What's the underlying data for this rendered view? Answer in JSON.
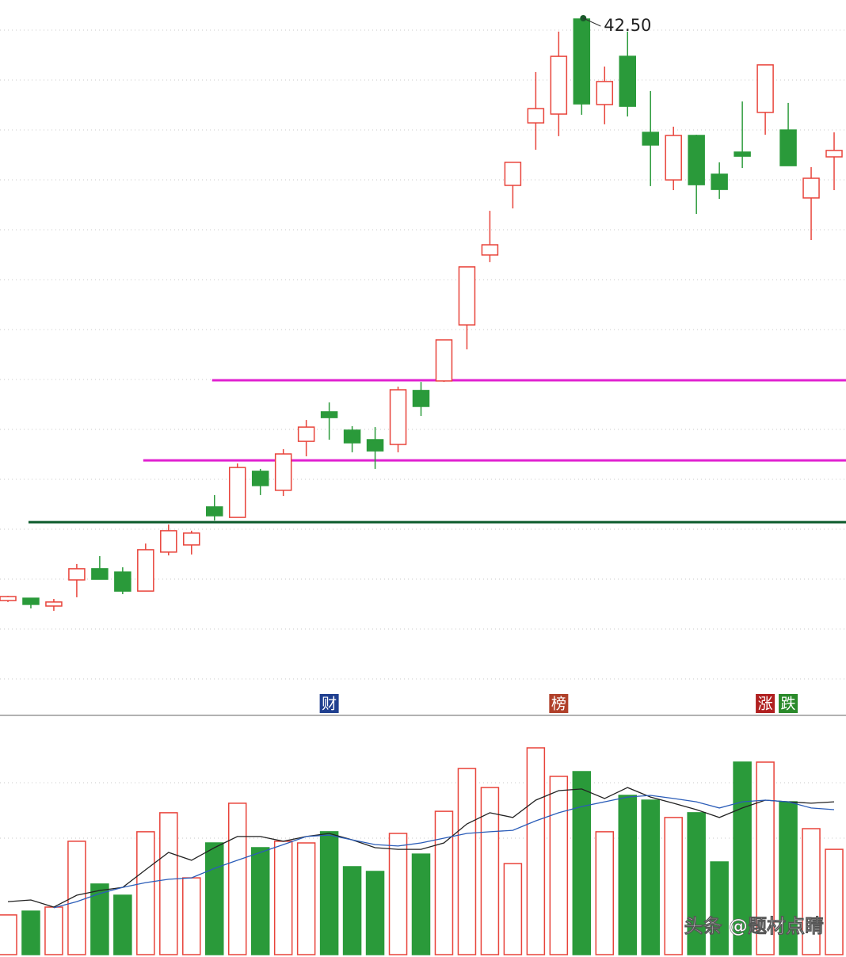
{
  "chart_data": {
    "type": "candlestick",
    "categories": [
      null,
      null,
      null,
      null,
      null,
      null,
      null,
      null,
      null,
      null,
      null,
      null,
      null,
      null,
      null,
      null,
      null,
      null,
      null,
      null,
      null,
      null,
      null,
      null,
      null,
      null,
      null,
      null,
      null,
      null,
      null,
      null,
      null,
      null,
      null,
      null,
      null
    ],
    "open": [
      17.93,
      18.03,
      17.7,
      18.8,
      19.27,
      19.13,
      18.33,
      19.97,
      20.27,
      21.87,
      21.43,
      23.37,
      22.57,
      24.63,
      25.87,
      25.1,
      24.7,
      24.5,
      26.77,
      27.17,
      29.53,
      32.47,
      35.4,
      38.03,
      38.4,
      42.4,
      38.8,
      40.83,
      37.63,
      35.63,
      37.5,
      35.87,
      36.8,
      38.47,
      37.73,
      34.87,
      36.6
    ],
    "high": [
      18.13,
      18.03,
      18.0,
      19.47,
      19.8,
      19.33,
      20.33,
      21.13,
      20.87,
      22.37,
      23.7,
      23.47,
      24.3,
      25.53,
      26.27,
      25.27,
      25.23,
      26.93,
      27.13,
      28.9,
      31.97,
      34.33,
      36.37,
      40.17,
      41.87,
      42.5,
      40.4,
      41.87,
      39.37,
      37.87,
      37.53,
      36.37,
      38.93,
      40.47,
      38.87,
      36.17,
      37.63
    ],
    "low": [
      17.87,
      17.6,
      17.5,
      18.07,
      18.83,
      18.2,
      18.33,
      19.83,
      19.87,
      21.3,
      21.43,
      22.37,
      22.33,
      24.0,
      24.7,
      24.17,
      23.47,
      24.17,
      25.7,
      27.13,
      28.5,
      32.17,
      34.43,
      36.9,
      37.47,
      38.37,
      37.97,
      38.3,
      35.37,
      35.2,
      34.2,
      34.83,
      36.13,
      37.53,
      36.23,
      33.1,
      35.2
    ],
    "close": [
      18.1,
      17.77,
      17.87,
      19.27,
      18.83,
      18.33,
      20.07,
      20.87,
      20.77,
      21.5,
      23.53,
      22.77,
      24.1,
      25.23,
      25.63,
      24.57,
      24.23,
      26.8,
      26.1,
      28.9,
      31.97,
      32.9,
      36.37,
      38.63,
      40.83,
      38.83,
      39.77,
      38.73,
      37.1,
      37.5,
      35.43,
      35.23,
      36.63,
      40.47,
      36.23,
      35.7,
      36.87
    ],
    "up_color": "#e8433a",
    "down_color": "#2a9a3a",
    "ylim": [
      13.2,
      43.2
    ],
    "max_label": {
      "index": 25,
      "text": "42.50"
    },
    "levels": [
      {
        "value": 27.2,
        "color": "#e020d0",
        "start": 9
      },
      {
        "value": 23.83,
        "color": "#e020d0",
        "start": 6
      },
      {
        "value": 21.23,
        "color": "#0a5a2a",
        "start": 1
      }
    ],
    "events": [
      {
        "index": 14,
        "label": "财",
        "color": "#1f3f8f"
      },
      {
        "index": 24,
        "label": "榜",
        "color": "#b0402a"
      },
      {
        "index": 33,
        "label": "涨",
        "color": "#b02020"
      },
      {
        "index": 34,
        "label": "跌",
        "color": "#2a8a2a"
      }
    ],
    "volume": {
      "values": [
        16.7,
        18.3,
        20,
        47.7,
        29.7,
        25,
        51.7,
        59.7,
        32.3,
        47,
        63.7,
        45,
        47.7,
        47,
        51.7,
        37,
        35,
        51,
        42.3,
        60.3,
        78.3,
        70.3,
        38.3,
        87,
        75,
        77,
        51.7,
        67,
        65,
        57.7,
        59.7,
        39,
        81,
        81,
        64.3,
        53,
        44.3
      ],
      "ylim": [
        0,
        100
      ],
      "ma": [
        {
          "color": "#222222",
          "values": [
            22.3,
            23,
            20,
            25,
            27,
            28.3,
            35.7,
            43,
            39.7,
            45,
            49.7,
            49.7,
            47.7,
            49.7,
            51,
            48.3,
            45,
            44.3,
            44.3,
            47,
            55,
            59.7,
            57.7,
            65,
            69,
            69.7,
            65.7,
            70.3,
            66.3,
            63.7,
            61,
            57.7,
            61.7,
            65,
            64.3,
            63.7,
            64.3
          ]
        },
        {
          "color": "#2a5cb8",
          "values": [
            null,
            null,
            19.7,
            22.3,
            25.7,
            28.3,
            30.3,
            31.7,
            32.3,
            36.3,
            39.7,
            43,
            46.3,
            49.7,
            50.3,
            48.3,
            46.3,
            45.7,
            47,
            49,
            51,
            51.7,
            52.3,
            56.3,
            59.7,
            62.3,
            64.3,
            66.3,
            67,
            65.7,
            64.3,
            61.7,
            64.3,
            65,
            64.3,
            61.7,
            61
          ]
        }
      ]
    },
    "watermark": "头条 @题材点睛"
  }
}
